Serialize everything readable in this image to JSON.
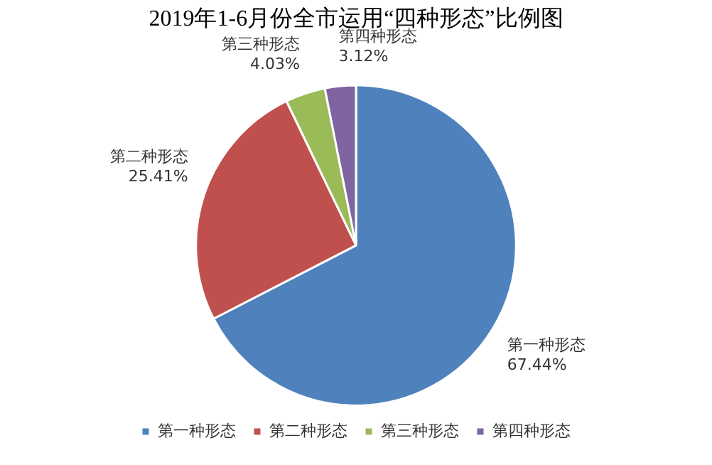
{
  "chart_data": {
    "type": "pie",
    "title": "2019年1-6月份全市运用“四种形态”比例图",
    "categories": [
      "第一种形态",
      "第二种形态",
      "第三种形态",
      "第四种形态"
    ],
    "values": [
      67.44,
      25.41,
      4.03,
      3.12
    ],
    "value_labels": [
      "67.44%",
      "25.41%",
      "4.03%",
      "3.12%"
    ],
    "colors": [
      "#4f81bd",
      "#c0504d",
      "#9bbb59",
      "#8064a2"
    ],
    "legend": "bottom"
  }
}
